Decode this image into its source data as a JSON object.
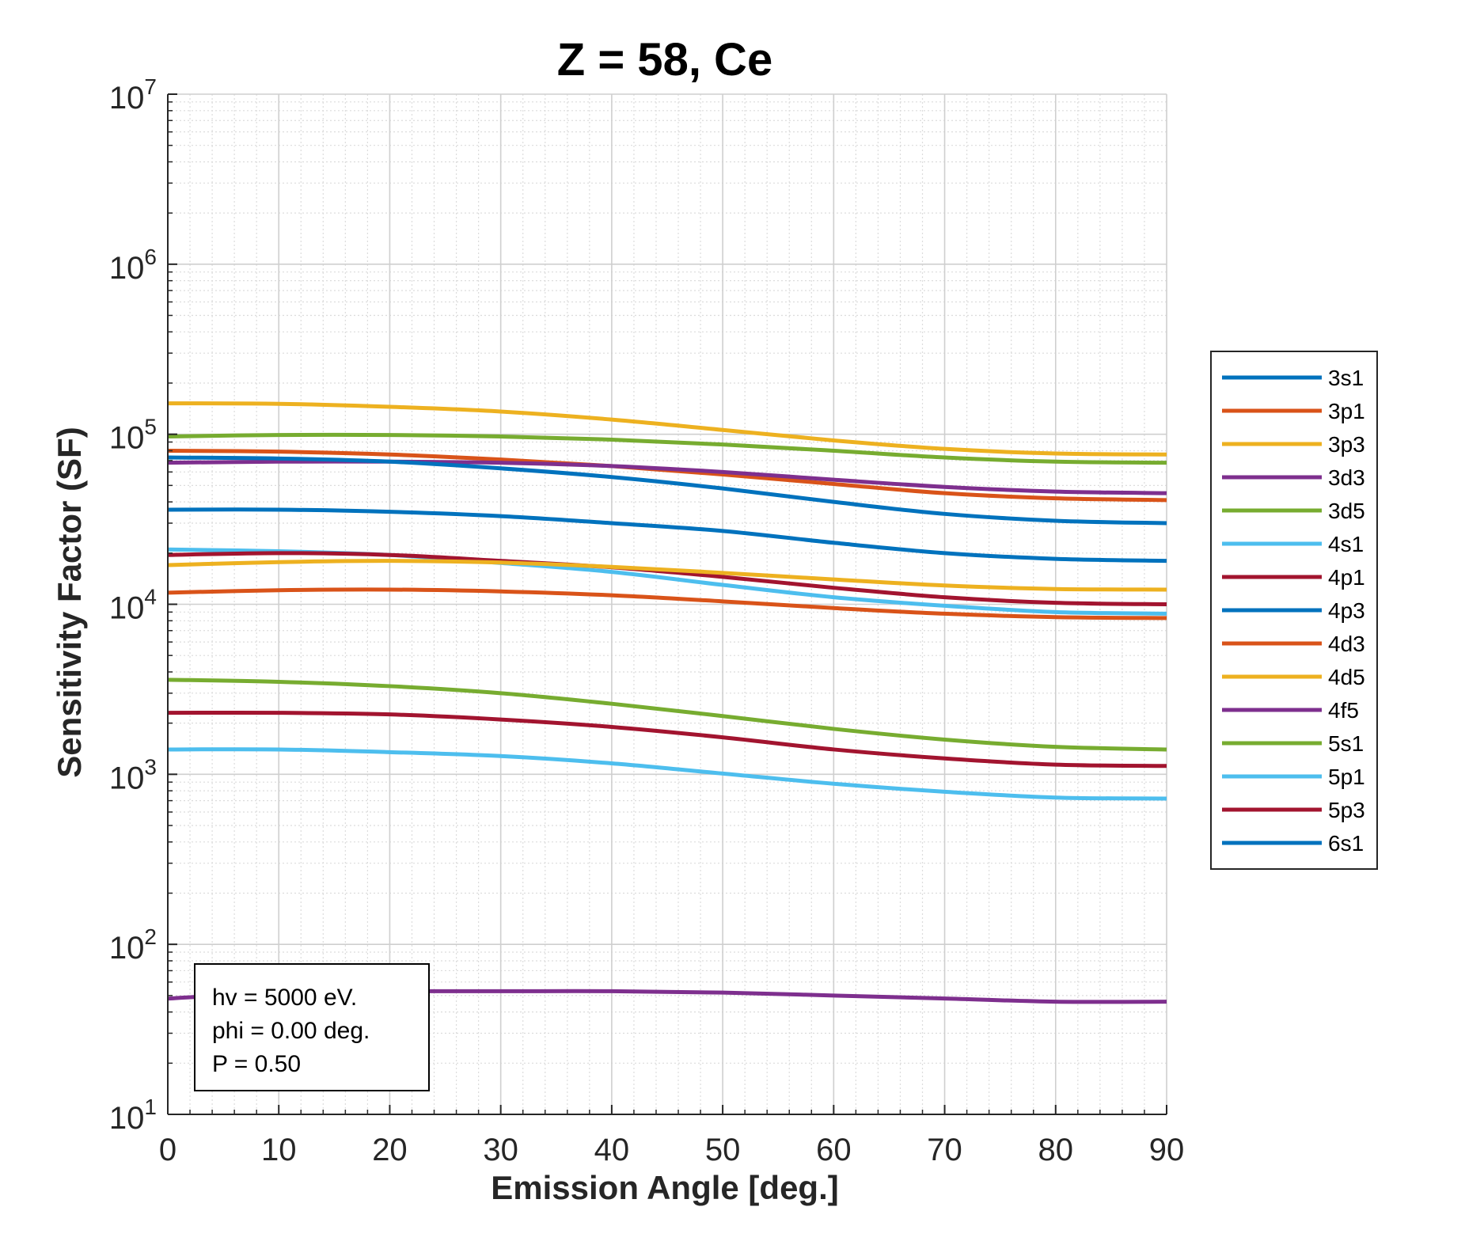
{
  "chart_data": {
    "type": "line",
    "title": "Z = 58, Ce",
    "xlabel": "Emission Angle [deg.]",
    "ylabel": "Sensitivity Factor (SF)",
    "xlim": [
      0,
      90
    ],
    "ylim": [
      10,
      10000000
    ],
    "yscale": "log",
    "grid": true,
    "legend_position": "outside-right",
    "x_ticks": [
      "0",
      "10",
      "20",
      "30",
      "40",
      "50",
      "60",
      "70",
      "80",
      "90"
    ],
    "y_ticks": [
      {
        "base": "10",
        "exp": "1"
      },
      {
        "base": "10",
        "exp": "2"
      },
      {
        "base": "10",
        "exp": "3"
      },
      {
        "base": "10",
        "exp": "4"
      },
      {
        "base": "10",
        "exp": "5"
      },
      {
        "base": "10",
        "exp": "6"
      },
      {
        "base": "10",
        "exp": "7"
      }
    ],
    "x": [
      0,
      10,
      20,
      30,
      40,
      50,
      60,
      70,
      80,
      90
    ],
    "series": [
      {
        "name": "3s1",
        "color": "#0072BD",
        "values": [
          36000,
          36000,
          35000,
          33000,
          30000,
          27000,
          23000,
          20000,
          18500,
          18000
        ]
      },
      {
        "name": "3p1",
        "color": "#D95319",
        "values": [
          80000,
          79000,
          76000,
          71000,
          65000,
          58000,
          51000,
          45000,
          42000,
          41000
        ]
      },
      {
        "name": "3p3",
        "color": "#EDB120",
        "values": [
          152000,
          151000,
          145000,
          136000,
          122000,
          106000,
          92000,
          82000,
          77000,
          76000
        ]
      },
      {
        "name": "3d3",
        "color": "#7E2F8E",
        "values": [
          68000,
          69000,
          69000,
          68000,
          65000,
          60000,
          54000,
          49000,
          46000,
          45000
        ]
      },
      {
        "name": "3d5",
        "color": "#77AC30",
        "values": [
          97000,
          99000,
          99000,
          97000,
          93000,
          87000,
          80000,
          73000,
          69000,
          68000
        ]
      },
      {
        "name": "4s1",
        "color": "#4DBEEE",
        "values": [
          21000,
          20500,
          19500,
          17500,
          15500,
          13000,
          11000,
          9800,
          9000,
          8800
        ]
      },
      {
        "name": "4p1",
        "color": "#A2142F",
        "values": [
          19500,
          20000,
          19500,
          18000,
          16500,
          14500,
          12500,
          11000,
          10200,
          10000
        ]
      },
      {
        "name": "4p3",
        "color": "#0072BD",
        "values": [
          73000,
          72000,
          69000,
          63000,
          56000,
          48000,
          40000,
          34000,
          31000,
          30000
        ]
      },
      {
        "name": "4d3",
        "color": "#D95319",
        "values": [
          11700,
          12100,
          12200,
          11900,
          11300,
          10400,
          9500,
          8800,
          8400,
          8300
        ]
      },
      {
        "name": "4d5",
        "color": "#EDB120",
        "values": [
          17000,
          17700,
          18000,
          17600,
          16600,
          15300,
          14000,
          12900,
          12300,
          12200
        ]
      },
      {
        "name": "4f5",
        "color": "#7E2F8E",
        "values": [
          48,
          52,
          53,
          53,
          53,
          52,
          50,
          48,
          46,
          46
        ]
      },
      {
        "name": "5s1",
        "color": "#77AC30",
        "values": [
          3600,
          3500,
          3300,
          3000,
          2600,
          2200,
          1850,
          1600,
          1450,
          1400
        ]
      },
      {
        "name": "5p1",
        "color": "#4DBEEE",
        "values": [
          1400,
          1400,
          1350,
          1280,
          1160,
          1010,
          880,
          790,
          730,
          720
        ]
      },
      {
        "name": "5p3",
        "color": "#A2142F",
        "values": [
          2300,
          2300,
          2250,
          2100,
          1900,
          1650,
          1400,
          1240,
          1140,
          1120
        ]
      },
      {
        "name": "6s1",
        "color": "#0072BD",
        "values": [
          null,
          null,
          null,
          null,
          null,
          null,
          null,
          null,
          null,
          null
        ]
      }
    ],
    "annotation": {
      "lines": [
        "hv = 5000 eV.",
        "phi = 0.00 deg.",
        "P = 0.50"
      ]
    }
  }
}
